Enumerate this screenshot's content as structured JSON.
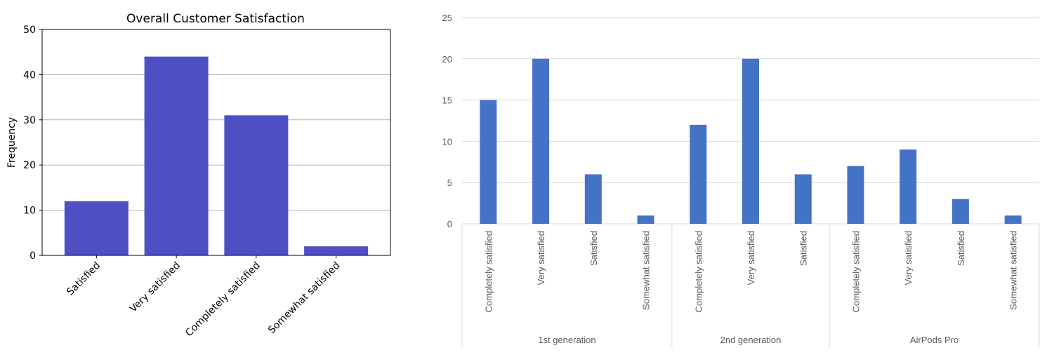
{
  "chart_data": [
    {
      "type": "bar",
      "title": "Overall Customer Satisfaction",
      "xlabel": "",
      "ylabel": "Frequency",
      "categories": [
        "Satisfied",
        "Very satisfied",
        "Completely satisfied",
        "Somewhat satisfied"
      ],
      "values": [
        12,
        44,
        31,
        2
      ],
      "ylim": [
        0,
        50
      ],
      "yticks": [
        0,
        10,
        20,
        30,
        40,
        50
      ],
      "grid": "horizontal",
      "legend": "none",
      "bar_color": "#4f4fc4"
    },
    {
      "type": "bar",
      "title": "",
      "xlabel": "",
      "ylabel": "",
      "groups": [
        {
          "name": "1st generation",
          "categories": [
            "Completely satisfied",
            "Very satisfied",
            "Satisfied",
            "Somewhat satisfied"
          ],
          "values": [
            15,
            20,
            6,
            1
          ]
        },
        {
          "name": "2nd generation",
          "categories": [
            "Completely satisfied",
            "Very satisfied",
            "Satisfied"
          ],
          "values": [
            12,
            20,
            6
          ]
        },
        {
          "name": "AirPods Pro",
          "categories": [
            "Completely satisfied",
            "Very satisfied",
            "Satisfied",
            "Somewhat satisfied"
          ],
          "values": [
            7,
            9,
            3,
            1
          ]
        }
      ],
      "ylim": [
        0,
        25
      ],
      "yticks": [
        0,
        5,
        10,
        15,
        20,
        25
      ],
      "grid": "horizontal",
      "legend": "none",
      "bar_color": "#4472c4"
    }
  ]
}
